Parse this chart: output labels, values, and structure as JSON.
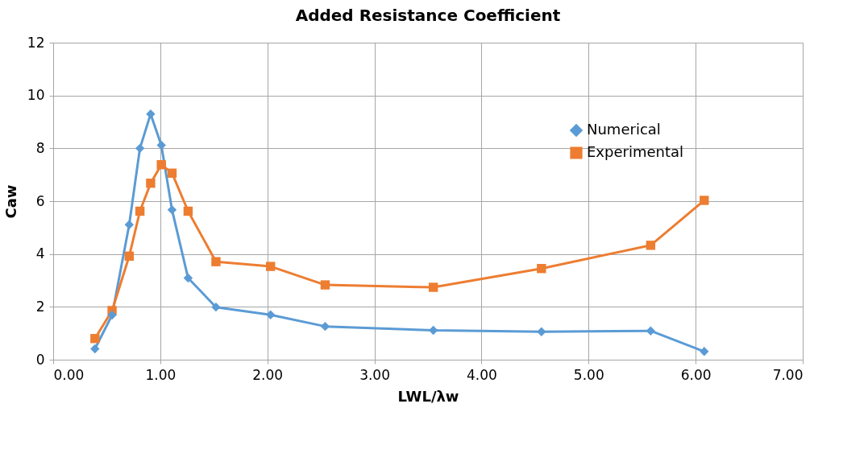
{
  "chart_data": {
    "type": "line",
    "title": "Added Resistance Coefficient",
    "xlabel": "LWL/λw",
    "ylabel": "Caw",
    "series": [
      {
        "name": "Numerical",
        "color": "#5b9bd5",
        "marker": "diamond",
        "x": [
          0.39,
          0.55,
          0.71,
          0.81,
          0.91,
          1.01,
          1.11,
          1.26,
          1.52,
          2.03,
          2.54,
          3.55,
          4.56,
          5.58,
          6.08
        ],
        "values": [
          0.41,
          1.69,
          5.11,
          8.0,
          9.3,
          8.12,
          5.67,
          3.09,
          1.99,
          1.7,
          1.26,
          1.11,
          1.06,
          1.09,
          0.31
        ]
      },
      {
        "name": "Experimental",
        "color": "#ed7d31",
        "marker": "square",
        "x": [
          0.39,
          0.55,
          0.71,
          0.81,
          0.91,
          1.01,
          1.11,
          1.26,
          1.52,
          2.03,
          2.54,
          3.55,
          4.56,
          5.58,
          6.08
        ],
        "values": [
          0.8,
          1.86,
          3.92,
          5.62,
          6.68,
          7.38,
          7.06,
          5.62,
          3.71,
          3.53,
          2.83,
          2.74,
          3.45,
          4.33,
          6.03
        ]
      }
    ],
    "xlim": [
      0,
      7
    ],
    "xticks": [
      {
        "value": 0,
        "label": "0.00"
      },
      {
        "value": 1,
        "label": "1.00"
      },
      {
        "value": 2,
        "label": "2.00"
      },
      {
        "value": 3,
        "label": "3.00"
      },
      {
        "value": 4,
        "label": "4.00"
      },
      {
        "value": 5,
        "label": "5.00"
      },
      {
        "value": 6,
        "label": "6.00"
      },
      {
        "value": 7,
        "label": "7.00"
      }
    ],
    "ylim": [
      0,
      12
    ],
    "yticks": [
      0,
      2,
      4,
      6,
      8,
      10,
      12
    ],
    "grid": true,
    "legend": "right",
    "line_style": "solid"
  }
}
